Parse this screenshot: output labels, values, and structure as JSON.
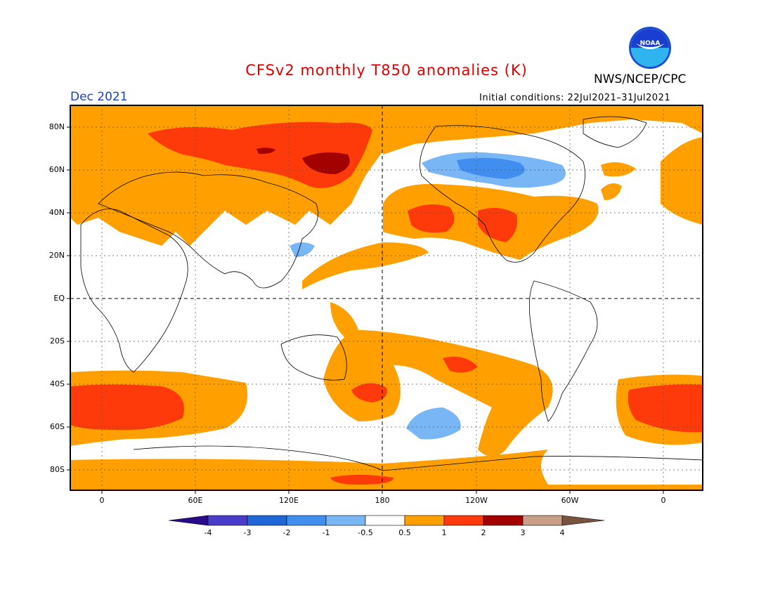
{
  "title": "CFSv2 monthly T850 anomalies (K)",
  "agency": "NWS/NCEP/CPC",
  "valid_month": "Dec 2021",
  "initial_conditions": "Initial conditions: 22Jul2021–31Jul2021",
  "logo_text": "NOAA",
  "lat_labels": [
    "80N",
    "60N",
    "40N",
    "20N",
    "EQ",
    "20S",
    "40S",
    "60S",
    "80S"
  ],
  "lon_labels": [
    "0",
    "60E",
    "120E",
    "180",
    "120W",
    "60W",
    "0"
  ],
  "colorbar": {
    "ticks": [
      "-4",
      "-3",
      "-2",
      "-1",
      "-0.5",
      "0.5",
      "1",
      "2",
      "3",
      "4"
    ],
    "colors": [
      "#2a0a8c",
      "#4a3cc8",
      "#1f66d6",
      "#3f8ef0",
      "#79b6f5",
      "#ffffff",
      "#ff9f00",
      "#ff3a0a",
      "#a30000",
      "#c89e86",
      "#7a5240"
    ]
  }
}
